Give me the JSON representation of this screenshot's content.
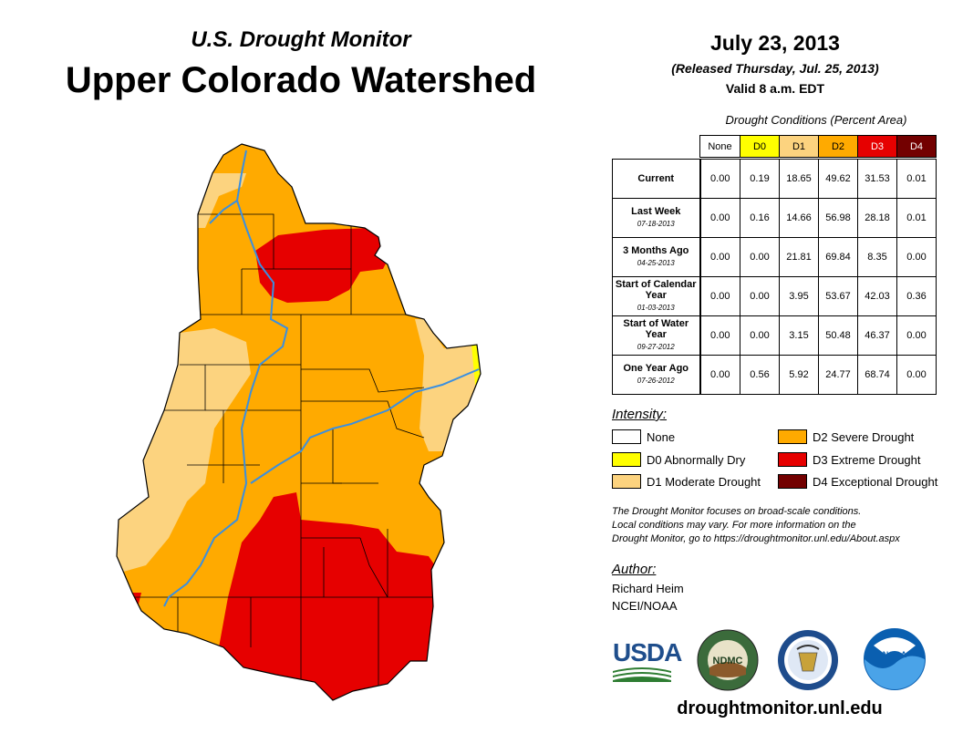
{
  "header": {
    "subtitle": "U.S. Drought Monitor",
    "title": "Upper Colorado Watershed",
    "date": "July 23, 2013",
    "released": "(Released Thursday, Jul. 25, 2013)",
    "valid": "Valid 8 a.m. EDT"
  },
  "table": {
    "caption": "Drought Conditions (Percent Area)",
    "columns": [
      "None",
      "D0",
      "D1",
      "D2",
      "D3",
      "D4"
    ],
    "rows": [
      {
        "label": "Current",
        "date": "",
        "values": [
          "0.00",
          "0.19",
          "18.65",
          "49.62",
          "31.53",
          "0.01"
        ]
      },
      {
        "label": "Last Week",
        "date": "07-18-2013",
        "values": [
          "0.00",
          "0.16",
          "14.66",
          "56.98",
          "28.18",
          "0.01"
        ]
      },
      {
        "label": "3 Months Ago",
        "date": "04-25-2013",
        "values": [
          "0.00",
          "0.00",
          "21.81",
          "69.84",
          "8.35",
          "0.00"
        ]
      },
      {
        "label": "Start of Calendar Year",
        "date": "01-03-2013",
        "values": [
          "0.00",
          "0.00",
          "3.95",
          "53.67",
          "42.03",
          "0.36"
        ]
      },
      {
        "label": "Start of Water Year",
        "date": "09-27-2012",
        "values": [
          "0.00",
          "0.00",
          "3.15",
          "50.48",
          "46.37",
          "0.00"
        ]
      },
      {
        "label": "One Year Ago",
        "date": "07-26-2012",
        "values": [
          "0.00",
          "0.56",
          "5.92",
          "24.77",
          "68.74",
          "0.00"
        ]
      }
    ]
  },
  "legend": {
    "title": "Intensity:",
    "items": [
      {
        "label": "None",
        "color": "#ffffff"
      },
      {
        "label": "D0 Abnormally Dry",
        "color": "#ffff00"
      },
      {
        "label": "D1 Moderate Drought",
        "color": "#fcd37f"
      },
      {
        "label": "D2 Severe Drought",
        "color": "#ffaa00"
      },
      {
        "label": "D3 Extreme Drought",
        "color": "#e60000"
      },
      {
        "label": "D4 Exceptional Drought",
        "color": "#730000"
      }
    ]
  },
  "note": {
    "line1": "The Drought Monitor focuses on broad-scale conditions.",
    "line2": "Local conditions may vary. For more information on the",
    "line3": "Drought Monitor, go to https://droughtmonitor.unl.edu/About.aspx"
  },
  "author": {
    "title": "Author:",
    "name": "Richard Heim",
    "org": "NCEI/NOAA"
  },
  "logos": {
    "usda": "USDA",
    "ndmc": "NDMC",
    "noaa": "NOAA"
  },
  "footer": {
    "url": "droughtmonitor.unl.edu"
  },
  "colors": {
    "d1": "#fcd37f",
    "d2": "#ffaa00",
    "d3": "#e60000",
    "river": "#3a8fe0"
  }
}
